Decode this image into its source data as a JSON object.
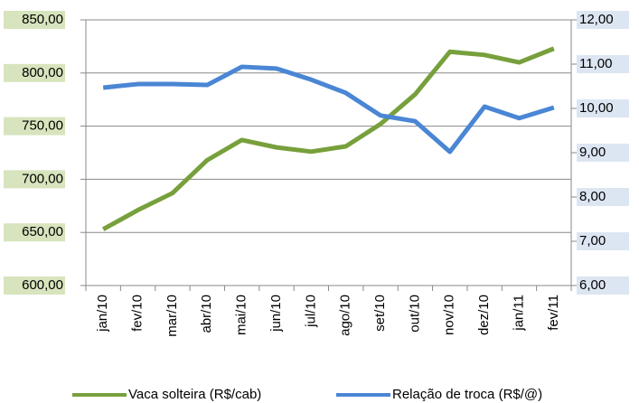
{
  "chart_data": {
    "type": "line",
    "categories": [
      "jan/10",
      "fev/10",
      "mar/10",
      "abr/10",
      "mai/10",
      "jun/10",
      "jul/10",
      "ago/10",
      "set/10",
      "out/10",
      "nov/10",
      "dez/10",
      "jan/11",
      "fev/11"
    ],
    "series": [
      {
        "name": "Vaca solteira (R$/cab)",
        "color": "#77a03c",
        "values": [
          653,
          671,
          687,
          718,
          737,
          730,
          726,
          731,
          752,
          780,
          820,
          817,
          810,
          823
        ]
      },
      {
        "name": "Relação de troca (R$/@)",
        "color": "#4a86d4",
        "axis": "y2",
        "values": [
          10.47,
          10.55,
          10.55,
          10.53,
          10.94,
          10.9,
          10.65,
          10.35,
          9.84,
          9.71,
          9.02,
          10.04,
          9.78,
          10.02
        ]
      }
    ],
    "ylim": [
      600,
      850
    ],
    "yticks": [
      {
        "value": 600,
        "label": "600,00"
      },
      {
        "value": 650,
        "label": "650,00"
      },
      {
        "value": 700,
        "label": "700,00"
      },
      {
        "value": 750,
        "label": "750,00"
      },
      {
        "value": 800,
        "label": "800,00"
      },
      {
        "value": 850,
        "label": "850,00"
      }
    ],
    "y2lim": [
      6,
      12
    ],
    "y2ticks": [
      {
        "value": 6,
        "label": "6,00"
      },
      {
        "value": 7,
        "label": "7,00"
      },
      {
        "value": 8,
        "label": "8,00"
      },
      {
        "value": 9,
        "label": "9,00"
      },
      {
        "value": 10,
        "label": "10,00"
      },
      {
        "value": 11,
        "label": "11,00"
      },
      {
        "value": 12,
        "label": "12,00"
      }
    ],
    "grid": true,
    "legend": "bottom"
  }
}
